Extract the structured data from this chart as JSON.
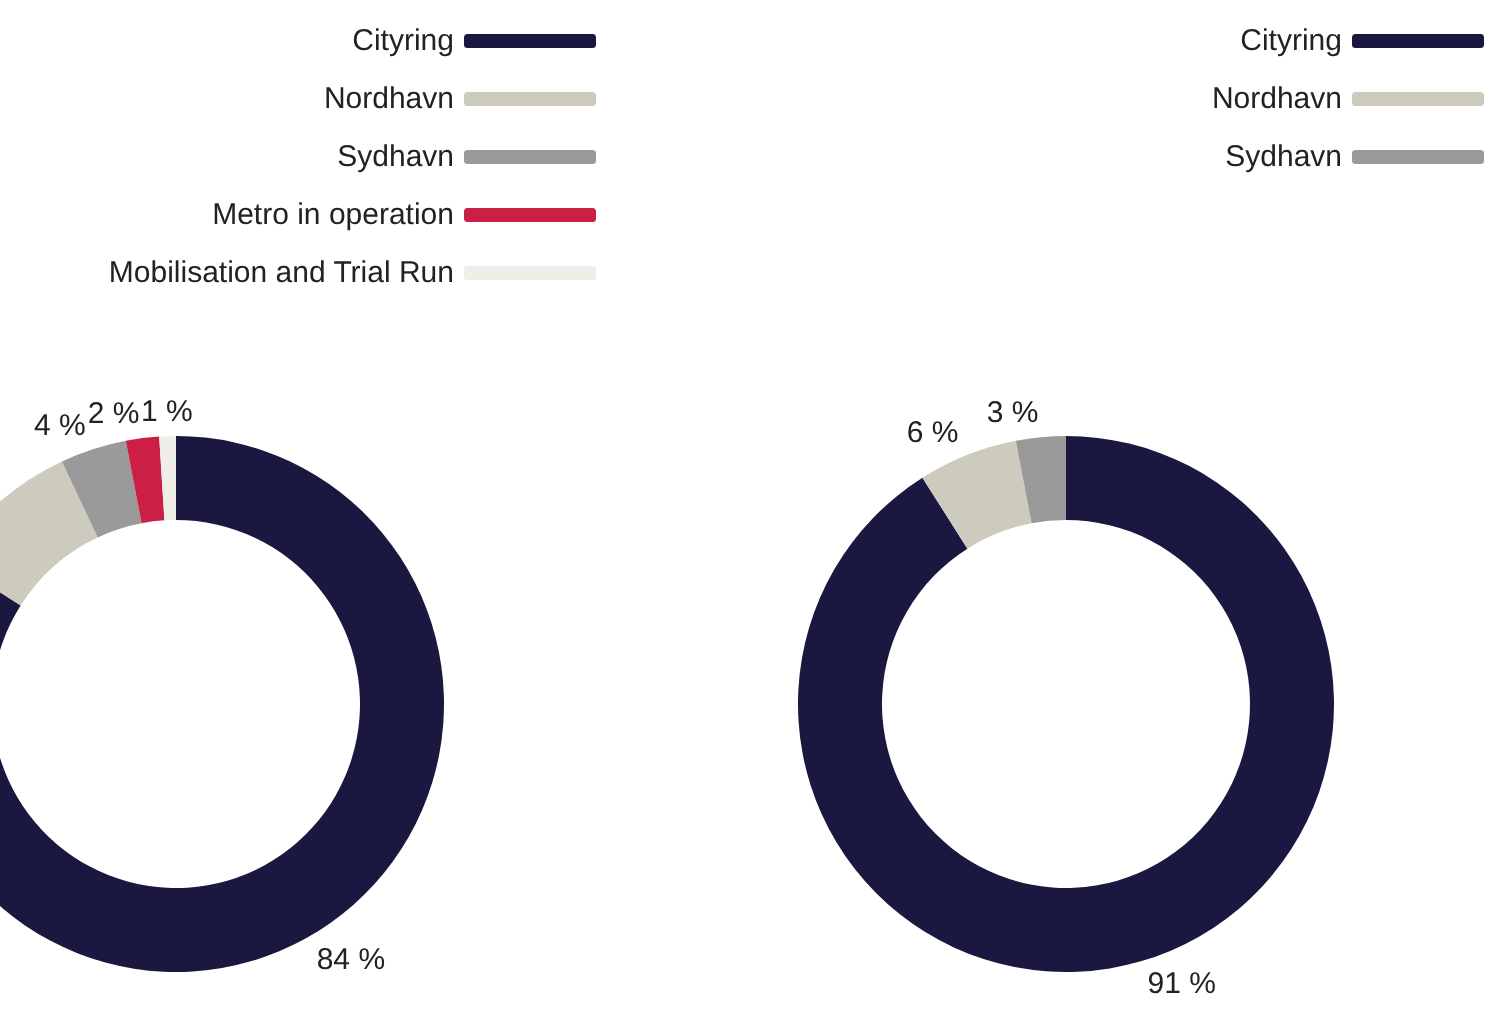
{
  "chart_data": [
    {
      "type": "donut",
      "categories": [
        "Cityring",
        "Nordhavn",
        "Sydhavn",
        "Metro in operation",
        "Mobilisation and Trial Run"
      ],
      "values": [
        84,
        9,
        4,
        2,
        1
      ],
      "colors": [
        "#1a1740",
        "#cdcbbd",
        "#9a9a9a",
        "#cc1f45",
        "#efefe9"
      ],
      "value_labels": [
        "84 %",
        null,
        "4 %",
        "2 %",
        "1 %"
      ],
      "legend": "top right"
    },
    {
      "type": "donut",
      "categories": [
        "Cityring",
        "Nordhavn",
        "Sydhavn"
      ],
      "values": [
        91,
        6,
        3
      ],
      "colors": [
        "#1a1740",
        "#cdcbbd",
        "#9a9a9a"
      ],
      "value_labels": [
        "91 %",
        "6 %",
        "3 %"
      ],
      "legend": "top right"
    }
  ]
}
